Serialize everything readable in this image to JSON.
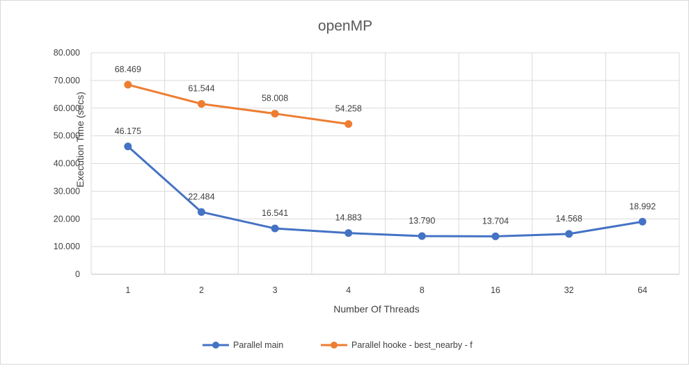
{
  "chart_data": {
    "type": "line",
    "title": "openMP",
    "xlabel": "Number Of Threads",
    "ylabel": "Execution Time (secs)",
    "categories": [
      "1",
      "2",
      "3",
      "4",
      "8",
      "16",
      "32",
      "64"
    ],
    "ylim": [
      0,
      80
    ],
    "yticks": [
      "0",
      "10.000",
      "20.000",
      "30.000",
      "40.000",
      "50.000",
      "60.000",
      "70.000",
      "80.000"
    ],
    "grid": true,
    "legend": "bottom",
    "series": [
      {
        "name": "Parallel main",
        "color": "#4472c4",
        "values": [
          46.175,
          22.484,
          16.541,
          14.883,
          13.79,
          13.704,
          14.568,
          18.992
        ],
        "labels": [
          "46.175",
          "22.484",
          "16.541",
          "14.883",
          "13.790",
          "13.704",
          "14.568",
          "18.992"
        ]
      },
      {
        "name": "Parallel hooke - best_nearby - f",
        "color": "#ed7d31",
        "values": [
          68.469,
          61.544,
          58.008,
          54.258,
          null,
          null,
          null,
          null
        ],
        "labels": [
          "68.469",
          "61.544",
          "58.008",
          "54.258",
          "",
          "",
          "",
          ""
        ]
      }
    ]
  }
}
